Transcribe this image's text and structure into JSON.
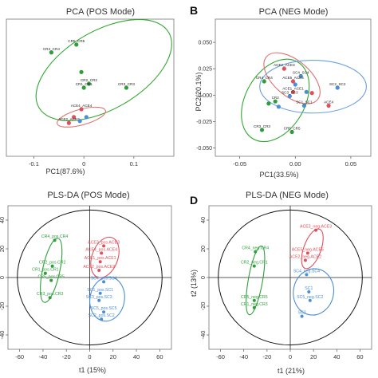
{
  "figure": {
    "panel_letters": [
      "",
      "B",
      "",
      "D"
    ]
  },
  "colors": {
    "pos_group": "#2e9e3a",
    "ace_group": "#e0505a",
    "sc_group": "#4a8fd6",
    "pca_green_ellipse": "#2fa82f",
    "pca_red_ellipse": "#e07070",
    "pca_blue_ellipse": "#6aa0e0"
  },
  "chart_data": [
    {
      "type": "scatter",
      "title": "PCA (POS Mode)",
      "xlabel": "PC1(87.6%)",
      "ylabel": "",
      "xlim": [
        -0.155,
        0.18
      ],
      "ylim": [
        -0.13,
        0.22
      ],
      "xticks": [
        -0.1,
        0.0,
        0.1
      ],
      "yticks": [],
      "grid": false,
      "points": [
        {
          "x": -0.015,
          "y": 0.155,
          "label": "CR5_CR5",
          "color": "green"
        },
        {
          "x": -0.065,
          "y": 0.135,
          "label": "CR4_CR4",
          "color": "green"
        },
        {
          "x": -0.005,
          "y": 0.085,
          "label": "",
          "color": "green"
        },
        {
          "x": 0.01,
          "y": 0.055,
          "label": "CR2_CR2",
          "color": "green"
        },
        {
          "x": 0.0,
          "y": 0.045,
          "label": "CR1_CR1",
          "color": "green"
        },
        {
          "x": 0.085,
          "y": 0.045,
          "label": "CR3_CR3",
          "color": "green"
        },
        {
          "x": -0.005,
          "y": -0.01,
          "label": "ACE4_ACE4",
          "color": "red"
        },
        {
          "x": -0.02,
          "y": -0.03,
          "label": "",
          "color": "red"
        },
        {
          "x": -0.03,
          "y": -0.045,
          "label": "ACE2_ACE2",
          "color": "red"
        },
        {
          "x": 0.005,
          "y": -0.03,
          "label": "",
          "color": "blue"
        },
        {
          "x": -0.008,
          "y": -0.04,
          "label": "",
          "color": "blue"
        }
      ],
      "ellipses": [
        {
          "color": "green",
          "cx": 0.04,
          "cy": 0.09,
          "rx": 0.15,
          "ry": 0.1,
          "angle_deg": -30
        },
        {
          "color": "red",
          "cx": -0.005,
          "cy": -0.03,
          "rx": 0.05,
          "ry": 0.02,
          "angle_deg": -15
        }
      ]
    },
    {
      "type": "scatter",
      "title": "PCA (NEG Mode)",
      "xlabel": "PC1(33.5%)",
      "ylabel": "PC2(20.1%)",
      "xlim": [
        -0.072,
        0.068
      ],
      "ylim": [
        -0.058,
        0.072
      ],
      "xticks": [
        -0.05,
        0.0,
        0.05
      ],
      "xtick_labels": [
        "-0.05",
        "0.00",
        "0.05"
      ],
      "yticks": [
        0.05,
        0.025,
        0.0,
        -0.025,
        -0.05
      ],
      "ytick_labels": [
        "0.050",
        "0.025",
        "0.000",
        "-0.025",
        "-0.050"
      ],
      "grid": false,
      "points": [
        {
          "x": -0.01,
          "y": 0.025,
          "label": "ACE2_ACE3",
          "color": "red"
        },
        {
          "x": 0.005,
          "y": 0.018,
          "label": "SC4_SC4",
          "color": "blue"
        },
        {
          "x": -0.002,
          "y": 0.013,
          "label": "ACE5_ACE5",
          "color": "red"
        },
        {
          "x": -0.028,
          "y": 0.013,
          "label": "CR4_CR4",
          "color": "green"
        },
        {
          "x": 0.0,
          "y": 0.01,
          "label": "",
          "color": "blue"
        },
        {
          "x": -0.002,
          "y": 0.003,
          "label": "ACE1_ACE1",
          "color": "red"
        },
        {
          "x": -0.005,
          "y": -0.001,
          "label": "SC3_SC3",
          "color": "blue"
        },
        {
          "x": 0.038,
          "y": 0.007,
          "label": "SC2_SC2",
          "color": "blue"
        },
        {
          "x": 0.01,
          "y": 0.003,
          "label": "",
          "color": "blue"
        },
        {
          "x": 0.015,
          "y": 0.002,
          "label": "",
          "color": "red"
        },
        {
          "x": -0.018,
          "y": -0.006,
          "label": "CR2",
          "color": "green"
        },
        {
          "x": -0.024,
          "y": -0.008,
          "label": "",
          "color": "green"
        },
        {
          "x": -0.015,
          "y": -0.011,
          "label": "",
          "color": "blue"
        },
        {
          "x": 0.008,
          "y": -0.01,
          "label": "SC1_SC1",
          "color": "blue"
        },
        {
          "x": 0.03,
          "y": -0.01,
          "label": "ACE4",
          "color": "red"
        },
        {
          "x": -0.03,
          "y": -0.033,
          "label": "CR3_CR3",
          "color": "green"
        },
        {
          "x": -0.003,
          "y": -0.035,
          "label": "CR5_CR5",
          "color": "green"
        }
      ],
      "ellipses": [
        {
          "color": "green",
          "cx": -0.018,
          "cy": -0.005,
          "rx": 0.04,
          "ry": 0.028,
          "angle_deg": -60
        },
        {
          "color": "red",
          "cx": -0.003,
          "cy": 0.016,
          "rx": 0.03,
          "ry": 0.017,
          "angle_deg": 40
        },
        {
          "color": "blue",
          "cx": 0.016,
          "cy": 0.008,
          "rx": 0.048,
          "ry": 0.025,
          "angle_deg": 0
        }
      ]
    },
    {
      "type": "scatter",
      "title": "PLS-DA (POS Mode)",
      "xlabel": "t1 (15%)",
      "ylabel": "",
      "xlim": [
        -70,
        70
      ],
      "ylim": [
        -50,
        50
      ],
      "xticks": [
        -60,
        -40,
        -20,
        0,
        20,
        40,
        60
      ],
      "yticks": [
        40,
        20,
        0,
        -20,
        -40
      ],
      "grid": false,
      "points": [
        {
          "x": -30,
          "y": 26,
          "label": "CR4_pos.CR4",
          "color": "green"
        },
        {
          "x": -32,
          "y": 8,
          "label": "CR2_pos.CR2",
          "color": "green"
        },
        {
          "x": -38,
          "y": 3,
          "label": "CR1_pos.CR1",
          "color": "green"
        },
        {
          "x": -33,
          "y": -2,
          "label": "CR5_pos.CR5",
          "color": "green"
        },
        {
          "x": -34,
          "y": -14,
          "label": "CR3_pos.CR3",
          "color": "green"
        },
        {
          "x": 12,
          "y": 22,
          "label": "ACE3_pos.ACE3",
          "color": "red"
        },
        {
          "x": 10,
          "y": 17,
          "label": "ACE4_pos.ACE4",
          "color": "red"
        },
        {
          "x": 9,
          "y": 11,
          "label": "ACE1_pos.ACE1",
          "color": "red"
        },
        {
          "x": 8,
          "y": 5,
          "label": "ACE2_pos.ACE2",
          "color": "red"
        },
        {
          "x": 12,
          "y": -3,
          "label": "SC4_pos.SC4",
          "color": "blue"
        },
        {
          "x": 9,
          "y": -11,
          "label": "SC1_pos.SC1",
          "color": "blue"
        },
        {
          "x": 8,
          "y": -16,
          "label": "SC3_pos.SC3",
          "color": "blue"
        },
        {
          "x": 12,
          "y": -24,
          "label": "SC5_pos.SC5",
          "color": "blue"
        },
        {
          "x": 10,
          "y": -29,
          "label": "SC2_pos.SC2",
          "color": "blue"
        }
      ],
      "ellipses": [
        {
          "color": "green",
          "cx": -33,
          "cy": 5,
          "rx": 28,
          "ry": 6,
          "angle_deg": -78
        },
        {
          "color": "red",
          "cx": 13,
          "cy": 14,
          "rx": 18,
          "ry": 9,
          "angle_deg": -70
        },
        {
          "color": "blue",
          "cx": 15,
          "cy": -15,
          "rx": 19,
          "ry": 12,
          "angle_deg": -80
        }
      ],
      "hotelling": {
        "rx": 62,
        "ry": 47
      }
    },
    {
      "type": "scatter",
      "title": "PLS-DA (NEG Mode)",
      "xlabel": "t1 (21%)",
      "ylabel": "t2 (13%)",
      "xlim": [
        -70,
        70
      ],
      "ylim": [
        -50,
        50
      ],
      "xticks": [
        -60,
        -40,
        -20,
        0,
        20,
        40,
        60
      ],
      "yticks": [
        40,
        20,
        0,
        -20,
        -40
      ],
      "grid": false,
      "points": [
        {
          "x": 22,
          "y": 33,
          "label": "ACE3_neg.ACE3",
          "color": "red"
        },
        {
          "x": 15,
          "y": 17,
          "label": "ACE5_neg.ACE5",
          "color": "red"
        },
        {
          "x": 13,
          "y": 12,
          "label": "ACE2_neg.ACE2",
          "color": "red"
        },
        {
          "x": 14,
          "y": 2,
          "label": "SC4_neg.SC4",
          "color": "blue"
        },
        {
          "x": 16,
          "y": -10,
          "label": "SC1",
          "color": "blue"
        },
        {
          "x": 17,
          "y": -16,
          "label": "SC5_neg.SC2",
          "color": "blue"
        },
        {
          "x": 10,
          "y": -27,
          "label": "SC3",
          "color": "blue"
        },
        {
          "x": -30,
          "y": 18,
          "label": "CR4_neg.CR4",
          "color": "green"
        },
        {
          "x": -31,
          "y": 8,
          "label": "CR2_neg.CR1",
          "color": "green"
        },
        {
          "x": -31,
          "y": -16,
          "label": "CR5_neg.CR5",
          "color": "green"
        },
        {
          "x": -31,
          "y": -21,
          "label": "CR1_neg.CR3",
          "color": "green"
        }
      ],
      "ellipses": [
        {
          "color": "green",
          "cx": -30,
          "cy": -2,
          "rx": 30,
          "ry": 5,
          "angle_deg": -80
        },
        {
          "color": "red",
          "cx": 19,
          "cy": 20,
          "rx": 18,
          "ry": 6,
          "angle_deg": -70
        },
        {
          "color": "blue",
          "cx": 20,
          "cy": -10,
          "rx": 20,
          "ry": 14,
          "angle_deg": -80
        }
      ],
      "hotelling": {
        "rx": 62,
        "ry": 47
      }
    }
  ]
}
